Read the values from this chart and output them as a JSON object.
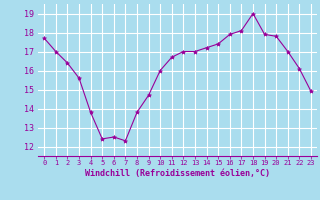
{
  "x": [
    0,
    1,
    2,
    3,
    4,
    5,
    6,
    7,
    8,
    9,
    10,
    11,
    12,
    13,
    14,
    15,
    16,
    17,
    18,
    19,
    20,
    21,
    22,
    23
  ],
  "y": [
    17.7,
    17.0,
    16.4,
    15.6,
    13.8,
    12.4,
    12.5,
    12.3,
    13.8,
    14.7,
    16.0,
    16.7,
    17.0,
    17.0,
    17.2,
    17.4,
    17.9,
    18.1,
    19.0,
    17.9,
    17.8,
    17.0,
    16.1,
    14.9
  ],
  "line_color": "#990099",
  "marker": "*",
  "marker_size": 3,
  "bg_color": "#aaddee",
  "grid_color": "#bbddee",
  "xlabel": "Windchill (Refroidissement éolien,°C)",
  "xlabel_color": "#990099",
  "tick_color": "#990099",
  "ylim": [
    11.5,
    19.5
  ],
  "xlim": [
    -0.5,
    23.5
  ],
  "yticks": [
    12,
    13,
    14,
    15,
    16,
    17,
    18,
    19
  ],
  "xticks": [
    0,
    1,
    2,
    3,
    4,
    5,
    6,
    7,
    8,
    9,
    10,
    11,
    12,
    13,
    14,
    15,
    16,
    17,
    18,
    19,
    20,
    21,
    22,
    23
  ]
}
